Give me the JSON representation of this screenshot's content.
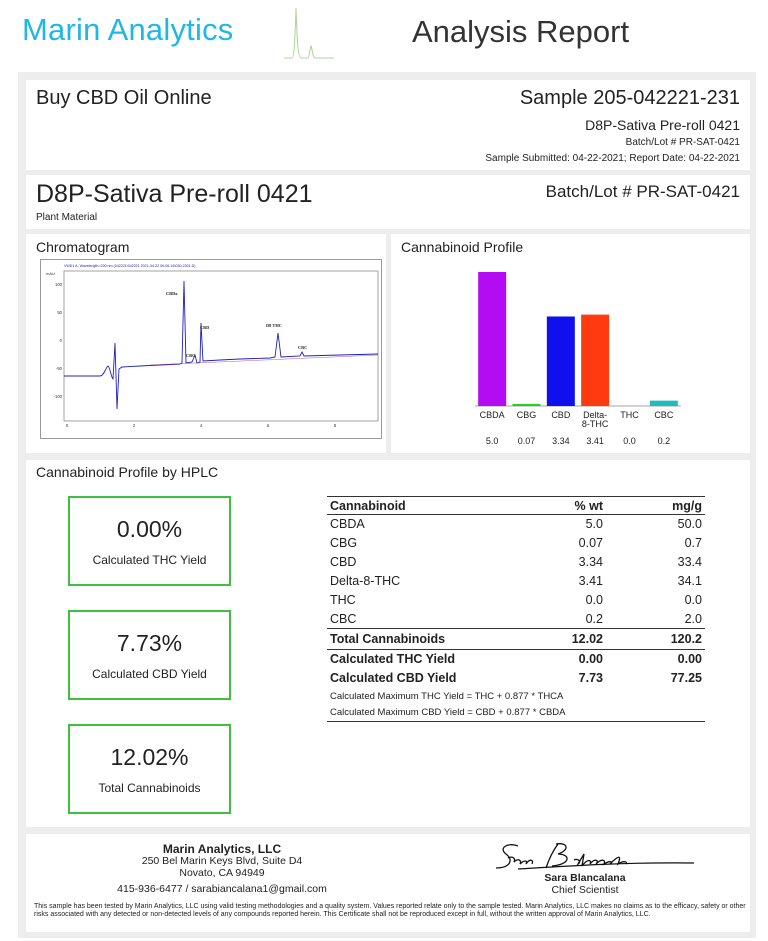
{
  "header": {
    "brand": "Marin Analytics",
    "report_title": "Analysis Report",
    "brand_color": "#1fb6e8"
  },
  "info": {
    "client": "Buy CBD Oil Online",
    "sample": "Sample 205-042221-231",
    "product_name": "D8P-Sativa Pre-roll 0421",
    "batch": "Batch/Lot # PR-SAT-0421",
    "dates": "Sample Submitted: 04-22-2021;  Report Date: 04-22-2021"
  },
  "product": {
    "name": "D8P-Sativa Pre-roll 0421",
    "type": "Plant Material",
    "batch": "Batch/Lot # PR-SAT-0421"
  },
  "chromatogram": {
    "title": "Chromatogram",
    "header_text": "VWD1 A, Wavelength=220 nm (042221\\042221 2021-04-22 09-06-16\\030-2301.D)",
    "unit": "mAU",
    "y_ticks": [
      "100",
      "50",
      "0",
      "-50",
      "-100"
    ],
    "x_ticks": [
      "0",
      "2",
      "4",
      "6",
      "8"
    ],
    "peaks": [
      "CBDa",
      "CBG",
      "CBD",
      "D8 THC",
      "CBC"
    ]
  },
  "chart_data": {
    "type": "bar",
    "title": "Cannabinoid Profile",
    "categories": [
      "CBDA",
      "CBG",
      "CBD",
      "Delta-8-THC",
      "THC",
      "CBC"
    ],
    "category_labels": [
      [
        "CBDA"
      ],
      [
        "CBG"
      ],
      [
        "CBD"
      ],
      [
        "Delta-",
        "8-THC"
      ],
      [
        "THC"
      ],
      [
        "CBC"
      ]
    ],
    "values": [
      5.0,
      0.07,
      3.34,
      3.41,
      0.0,
      0.2
    ],
    "value_labels": [
      "5.0",
      "0.07",
      "3.34",
      "3.41",
      "0.0",
      "0.2"
    ],
    "colors": [
      "#b30cf2",
      "#1fd61f",
      "#1010ee",
      "#ff3a10",
      "#ffa020",
      "#1fbcbc"
    ],
    "ylim": [
      0,
      5.0
    ],
    "grid": false,
    "legend": "none"
  },
  "hplc": {
    "title": "Cannabinoid Profile by HPLC",
    "boxes": [
      {
        "value": "0.00%",
        "label": "Calculated THC Yield"
      },
      {
        "value": "7.73%",
        "label": "Calculated CBD Yield"
      },
      {
        "value": "12.02%",
        "label": "Total Cannabinoids"
      }
    ],
    "box_color": "#3ec13e",
    "table": {
      "headers": [
        "Cannabinoid",
        "% wt",
        "mg/g"
      ],
      "rows": [
        {
          "name": "CBDA",
          "wt": "5.0",
          "mg": "50.0"
        },
        {
          "name": "CBG",
          "wt": "0.07",
          "mg": "0.7"
        },
        {
          "name": "CBD",
          "wt": "3.34",
          "mg": "33.4"
        },
        {
          "name": "Delta-8-THC",
          "wt": "3.41",
          "mg": "34.1"
        },
        {
          "name": "THC",
          "wt": "0.0",
          "mg": "0.0"
        },
        {
          "name": "CBC",
          "wt": "0.2",
          "mg": "2.0"
        }
      ],
      "total": {
        "name": "Total Cannabinoids",
        "wt": "12.02",
        "mg": "120.2"
      },
      "thc_yield": {
        "name": "Calculated THC Yield",
        "wt": "0.00",
        "mg": "0.00"
      },
      "cbd_yield": {
        "name": "Calculated CBD Yield",
        "wt": "7.73",
        "mg": "77.25"
      },
      "note_thc": "Calculated Maximum THC Yield = THC + 0.877 * THCA",
      "note_cbd": "Calculated Maximum CBD Yield = CBD + 0.877 * CBDA"
    }
  },
  "footer": {
    "lab_name": "Marin Analytics, LLC",
    "address1": "250 Bel Marin Keys Blvd, Suite D4",
    "address2": "Novato, CA 94949",
    "contact": "415-936-6477 / sarabiancalana1@gmail.com",
    "signer": "Sara Blancalana",
    "signer_title": "Chief Scientist",
    "disclaimer": "This sample has been tested by Marin Analytics, LLC using valid testing methodologies and a quality system.  Values reported relate only to the sample tested.  Marin Analytics, LLC makes no claims as to the efficacy, safety or other risks associated with any detected or non-detected levels of any compounds reported herein.  This Certificate shall not be reproduced except in full, without the written approval of Marin Analytics, LLC."
  }
}
